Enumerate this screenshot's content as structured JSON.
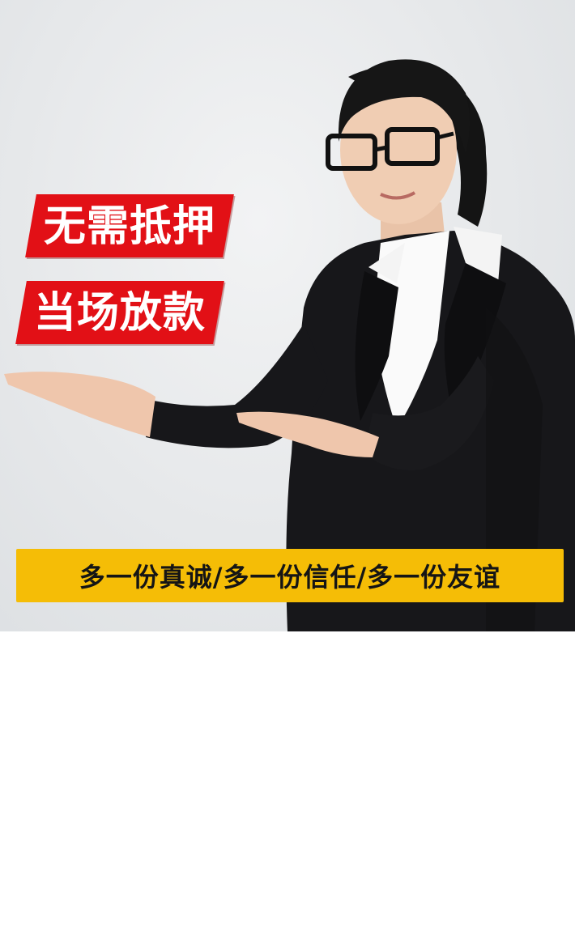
{
  "banner": {
    "tag_1": "无需抵押",
    "tag_2": "当场放款",
    "slogan": "多一份真诚/多一份信任/多一份友谊"
  },
  "colors": {
    "tag_background": "#e21016",
    "slogan_background": "#f5bd06",
    "photo_background": "#e6e8ea",
    "page_background": "#ffffff"
  }
}
